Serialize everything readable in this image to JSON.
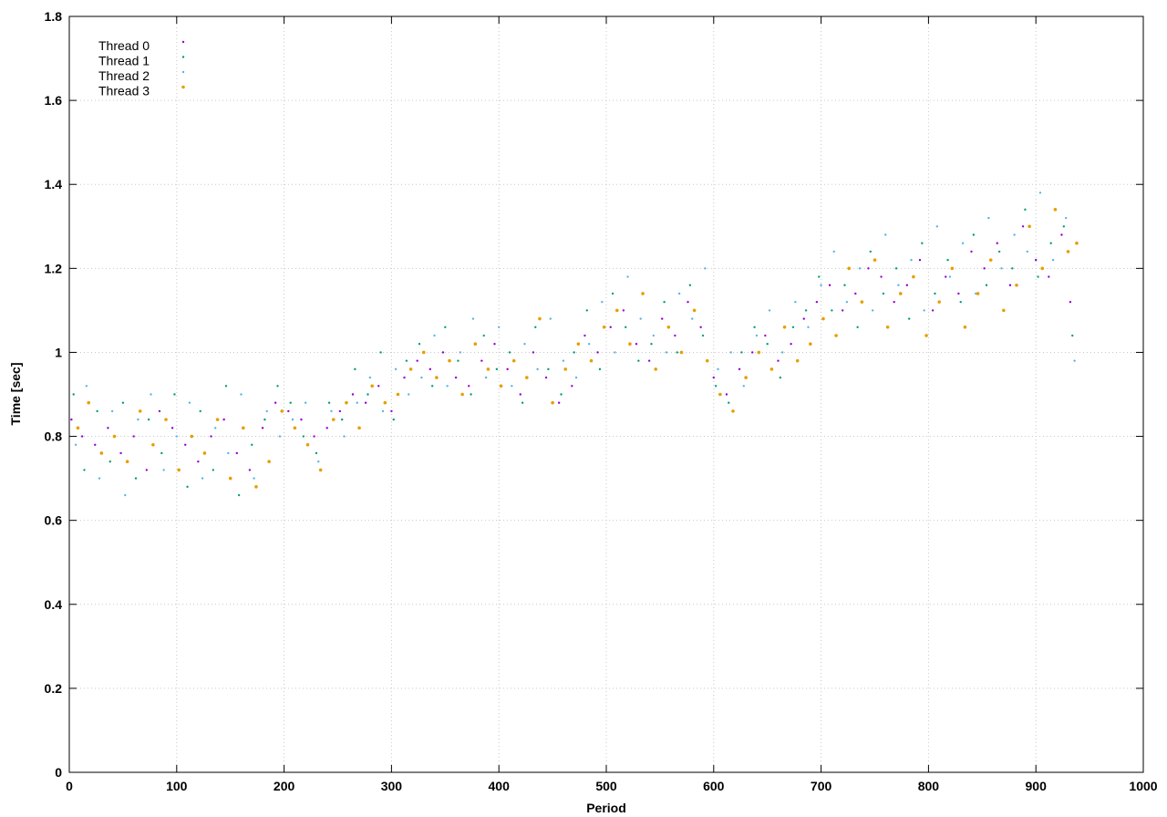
{
  "chart_data": {
    "type": "scatter",
    "title": "",
    "xlabel": "Period",
    "ylabel": "Time [sec]",
    "xlim": [
      0,
      1000
    ],
    "ylim": [
      0,
      1.8
    ],
    "x_ticks": [
      0,
      100,
      200,
      300,
      400,
      500,
      600,
      700,
      800,
      900,
      1000
    ],
    "y_ticks": [
      0,
      0.2,
      0.4,
      0.6,
      0.8,
      1,
      1.2,
      1.4,
      1.6,
      1.8
    ],
    "x_tick_labels": [
      "0",
      "100",
      "200",
      "300",
      "400",
      "500",
      "600",
      "700",
      "800",
      "900",
      "1000"
    ],
    "y_tick_labels": [
      "0",
      "0.2",
      "0.4",
      "0.6",
      "0.8",
      "1",
      "1.2",
      "1.4",
      "1.6",
      "1.8"
    ],
    "grid": true,
    "legend_position": "top-left",
    "series": [
      {
        "name": "Thread 0",
        "color": "#9400d3",
        "x": [
          2,
          12,
          24,
          36,
          48,
          60,
          72,
          84,
          96,
          108,
          120,
          132,
          144,
          156,
          168,
          180,
          192,
          204,
          216,
          228,
          240,
          252,
          264,
          276,
          288,
          300,
          312,
          324,
          336,
          348,
          360,
          372,
          384,
          396,
          408,
          420,
          432,
          444,
          456,
          468,
          480,
          492,
          504,
          516,
          528,
          540,
          552,
          564,
          576,
          588,
          600,
          612,
          624,
          636,
          648,
          660,
          672,
          684,
          696,
          708,
          720,
          732,
          744,
          756,
          768,
          780,
          792,
          804,
          816,
          828,
          840,
          852,
          864,
          876,
          888,
          900,
          912,
          924,
          932
        ],
        "y": [
          0.84,
          0.8,
          0.78,
          0.82,
          0.76,
          0.8,
          0.72,
          0.86,
          0.82,
          0.78,
          0.74,
          0.8,
          0.84,
          0.76,
          0.72,
          0.82,
          0.88,
          0.86,
          0.84,
          0.8,
          0.82,
          0.86,
          0.9,
          0.88,
          0.92,
          0.86,
          0.94,
          0.98,
          0.96,
          1.0,
          0.94,
          0.92,
          0.98,
          1.02,
          0.96,
          0.9,
          1.0,
          0.94,
          0.88,
          0.92,
          1.04,
          1.0,
          1.06,
          1.1,
          1.02,
          0.98,
          1.08,
          1.04,
          1.12,
          1.06,
          0.94,
          0.9,
          0.96,
          1.0,
          1.04,
          0.98,
          1.02,
          1.08,
          1.12,
          1.16,
          1.1,
          1.14,
          1.2,
          1.18,
          1.12,
          1.16,
          1.22,
          1.1,
          1.18,
          1.14,
          1.24,
          1.2,
          1.26,
          1.16,
          1.3,
          1.22,
          1.18,
          1.28,
          1.12
        ]
      },
      {
        "name": "Thread 1",
        "color": "#009e73",
        "x": [
          4,
          14,
          26,
          38,
          50,
          62,
          74,
          86,
          98,
          110,
          122,
          134,
          146,
          158,
          170,
          182,
          194,
          206,
          218,
          230,
          242,
          254,
          266,
          278,
          290,
          302,
          314,
          326,
          338,
          350,
          362,
          374,
          386,
          398,
          410,
          422,
          434,
          446,
          458,
          470,
          482,
          494,
          506,
          518,
          530,
          542,
          554,
          566,
          578,
          590,
          602,
          614,
          626,
          638,
          650,
          662,
          674,
          686,
          698,
          710,
          722,
          734,
          746,
          758,
          770,
          782,
          794,
          806,
          818,
          830,
          842,
          854,
          866,
          878,
          890,
          902,
          914,
          926,
          934
        ],
        "y": [
          0.9,
          0.72,
          0.86,
          0.74,
          0.88,
          0.7,
          0.84,
          0.76,
          0.9,
          0.68,
          0.86,
          0.72,
          0.92,
          0.66,
          0.78,
          0.84,
          0.92,
          0.88,
          0.8,
          0.76,
          0.88,
          0.84,
          0.96,
          0.9,
          1.0,
          0.84,
          0.98,
          1.02,
          0.92,
          1.06,
          0.98,
          0.9,
          1.04,
          0.96,
          1.0,
          0.88,
          1.06,
          0.96,
          0.9,
          1.0,
          1.1,
          0.96,
          1.14,
          1.06,
          0.98,
          1.02,
          1.12,
          1.0,
          1.16,
          1.04,
          0.92,
          0.88,
          1.0,
          1.06,
          1.02,
          0.94,
          1.06,
          1.1,
          1.18,
          1.1,
          1.16,
          1.06,
          1.24,
          1.14,
          1.2,
          1.08,
          1.26,
          1.14,
          1.22,
          1.12,
          1.28,
          1.16,
          1.24,
          1.2,
          1.34,
          1.18,
          1.26,
          1.3,
          1.04
        ]
      },
      {
        "name": "Thread 2",
        "color": "#56b4e9",
        "x": [
          6,
          16,
          28,
          40,
          52,
          64,
          76,
          88,
          100,
          112,
          124,
          136,
          148,
          160,
          172,
          184,
          196,
          208,
          220,
          232,
          244,
          256,
          268,
          280,
          292,
          304,
          316,
          328,
          340,
          352,
          364,
          376,
          388,
          400,
          412,
          424,
          436,
          448,
          460,
          472,
          484,
          496,
          508,
          520,
          532,
          544,
          556,
          568,
          580,
          592,
          604,
          616,
          628,
          640,
          652,
          664,
          676,
          688,
          700,
          712,
          724,
          736,
          748,
          760,
          772,
          784,
          796,
          808,
          820,
          832,
          844,
          856,
          868,
          880,
          892,
          904,
          916,
          928,
          936
        ],
        "y": [
          0.78,
          0.92,
          0.7,
          0.86,
          0.66,
          0.84,
          0.9,
          0.72,
          0.8,
          0.88,
          0.7,
          0.82,
          0.76,
          0.9,
          0.7,
          0.86,
          0.8,
          0.84,
          0.88,
          0.74,
          0.86,
          0.8,
          0.88,
          0.94,
          0.86,
          0.96,
          0.9,
          0.94,
          1.04,
          0.92,
          1.0,
          1.08,
          0.94,
          1.06,
          0.92,
          1.02,
          0.96,
          1.08,
          0.98,
          0.94,
          1.02,
          1.12,
          1.0,
          1.18,
          1.08,
          1.04,
          1.0,
          1.14,
          1.08,
          1.2,
          0.96,
          1.0,
          0.92,
          1.04,
          1.1,
          1.0,
          1.12,
          1.06,
          1.16,
          1.24,
          1.12,
          1.2,
          1.1,
          1.28,
          1.16,
          1.22,
          1.1,
          1.3,
          1.18,
          1.26,
          1.14,
          1.32,
          1.2,
          1.28,
          1.24,
          1.38,
          1.22,
          1.32,
          0.98
        ]
      },
      {
        "name": "Thread 3",
        "color": "#e69f00",
        "x": [
          8,
          18,
          30,
          42,
          54,
          66,
          78,
          90,
          102,
          114,
          126,
          138,
          150,
          162,
          174,
          186,
          198,
          210,
          222,
          234,
          246,
          258,
          270,
          282,
          294,
          306,
          318,
          330,
          342,
          354,
          366,
          378,
          390,
          402,
          414,
          426,
          438,
          450,
          462,
          474,
          486,
          498,
          510,
          522,
          534,
          546,
          558,
          570,
          582,
          594,
          606,
          618,
          630,
          642,
          654,
          666,
          678,
          690,
          702,
          714,
          726,
          738,
          750,
          762,
          774,
          786,
          798,
          810,
          822,
          834,
          846,
          858,
          870,
          882,
          894,
          906,
          918,
          930,
          938
        ],
        "y": [
          0.82,
          0.88,
          0.76,
          0.8,
          0.74,
          0.86,
          0.78,
          0.84,
          0.72,
          0.8,
          0.76,
          0.84,
          0.7,
          0.82,
          0.68,
          0.74,
          0.86,
          0.82,
          0.78,
          0.72,
          0.84,
          0.88,
          0.82,
          0.92,
          0.88,
          0.9,
          0.96,
          1.0,
          0.94,
          0.98,
          0.9,
          1.02,
          0.96,
          0.92,
          0.98,
          0.94,
          1.08,
          0.88,
          0.96,
          1.02,
          0.98,
          1.06,
          1.1,
          1.02,
          1.14,
          0.96,
          1.06,
          1.0,
          1.1,
          0.98,
          0.9,
          0.86,
          0.94,
          1.0,
          0.96,
          1.06,
          0.98,
          1.02,
          1.08,
          1.04,
          1.2,
          1.12,
          1.22,
          1.06,
          1.14,
          1.18,
          1.04,
          1.12,
          1.2,
          1.06,
          1.14,
          1.22,
          1.1,
          1.16,
          1.3,
          1.2,
          1.34,
          1.24,
          1.26
        ]
      }
    ]
  }
}
